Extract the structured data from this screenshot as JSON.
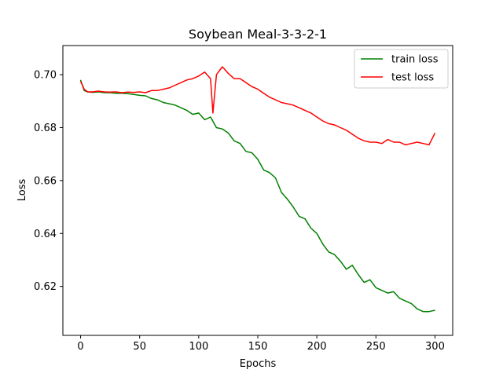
{
  "chart_data": {
    "type": "line",
    "title": "Soybean Meal-3-3-2-1",
    "xlabel": "Epochs",
    "ylabel": "Loss",
    "xlim": [
      -15,
      315
    ],
    "ylim": [
      0.6015,
      0.711
    ],
    "x_ticks": [
      0,
      50,
      100,
      150,
      200,
      250,
      300
    ],
    "x_tick_labels": [
      "0",
      "50",
      "100",
      "150",
      "200",
      "250",
      "300"
    ],
    "y_ticks": [
      0.62,
      0.64,
      0.66,
      0.68,
      0.7
    ],
    "y_tick_labels": [
      "0.62",
      "0.64",
      "0.66",
      "0.68",
      "0.70"
    ],
    "grid": false,
    "legend_position": "top-right",
    "series": [
      {
        "name": "train loss",
        "color": "#008000",
        "x": [
          0,
          3,
          6,
          10,
          15,
          20,
          25,
          30,
          35,
          40,
          45,
          50,
          55,
          60,
          65,
          70,
          75,
          80,
          85,
          90,
          95,
          100,
          105,
          110,
          115,
          120,
          125,
          130,
          135,
          140,
          145,
          150,
          155,
          160,
          165,
          170,
          175,
          180,
          185,
          190,
          195,
          200,
          205,
          210,
          215,
          220,
          225,
          230,
          235,
          240,
          245,
          250,
          255,
          260,
          265,
          270,
          275,
          280,
          285,
          290,
          295,
          300
        ],
        "y": [
          0.698,
          0.694,
          0.6935,
          0.6933,
          0.6935,
          0.6932,
          0.6932,
          0.693,
          0.693,
          0.6928,
          0.6925,
          0.6922,
          0.692,
          0.691,
          0.6905,
          0.6895,
          0.689,
          0.6885,
          0.6875,
          0.6865,
          0.685,
          0.6855,
          0.683,
          0.684,
          0.68,
          0.6795,
          0.678,
          0.675,
          0.674,
          0.671,
          0.6705,
          0.668,
          0.664,
          0.663,
          0.661,
          0.6555,
          0.653,
          0.65,
          0.6465,
          0.6455,
          0.642,
          0.64,
          0.636,
          0.633,
          0.632,
          0.6295,
          0.6265,
          0.628,
          0.6245,
          0.6215,
          0.6225,
          0.6195,
          0.6185,
          0.6175,
          0.618,
          0.6155,
          0.6145,
          0.6135,
          0.6115,
          0.6105,
          0.6105,
          0.611
        ]
      },
      {
        "name": "test loss",
        "color": "#ff0000",
        "x": [
          0,
          3,
          6,
          10,
          15,
          20,
          25,
          30,
          35,
          40,
          45,
          50,
          55,
          60,
          65,
          70,
          75,
          80,
          85,
          90,
          95,
          100,
          105,
          110,
          112,
          115,
          120,
          125,
          130,
          135,
          140,
          145,
          150,
          155,
          160,
          165,
          170,
          175,
          180,
          185,
          190,
          195,
          200,
          205,
          210,
          215,
          220,
          225,
          230,
          235,
          240,
          245,
          250,
          255,
          260,
          265,
          270,
          275,
          280,
          285,
          290,
          295,
          300
        ],
        "y": [
          0.6975,
          0.6945,
          0.6935,
          0.6935,
          0.6938,
          0.6935,
          0.6934,
          0.6935,
          0.6932,
          0.6934,
          0.6933,
          0.6935,
          0.6932,
          0.694,
          0.694,
          0.6945,
          0.695,
          0.696,
          0.697,
          0.698,
          0.6985,
          0.6995,
          0.701,
          0.6985,
          0.6855,
          0.7,
          0.703,
          0.7005,
          0.6985,
          0.6985,
          0.697,
          0.6955,
          0.6945,
          0.693,
          0.6915,
          0.6905,
          0.6895,
          0.689,
          0.6885,
          0.6875,
          0.6865,
          0.6855,
          0.684,
          0.6825,
          0.6815,
          0.681,
          0.68,
          0.679,
          0.6775,
          0.676,
          0.675,
          0.6745,
          0.6745,
          0.674,
          0.6755,
          0.6745,
          0.6745,
          0.6735,
          0.674,
          0.6745,
          0.674,
          0.6735,
          0.678
        ]
      }
    ]
  }
}
